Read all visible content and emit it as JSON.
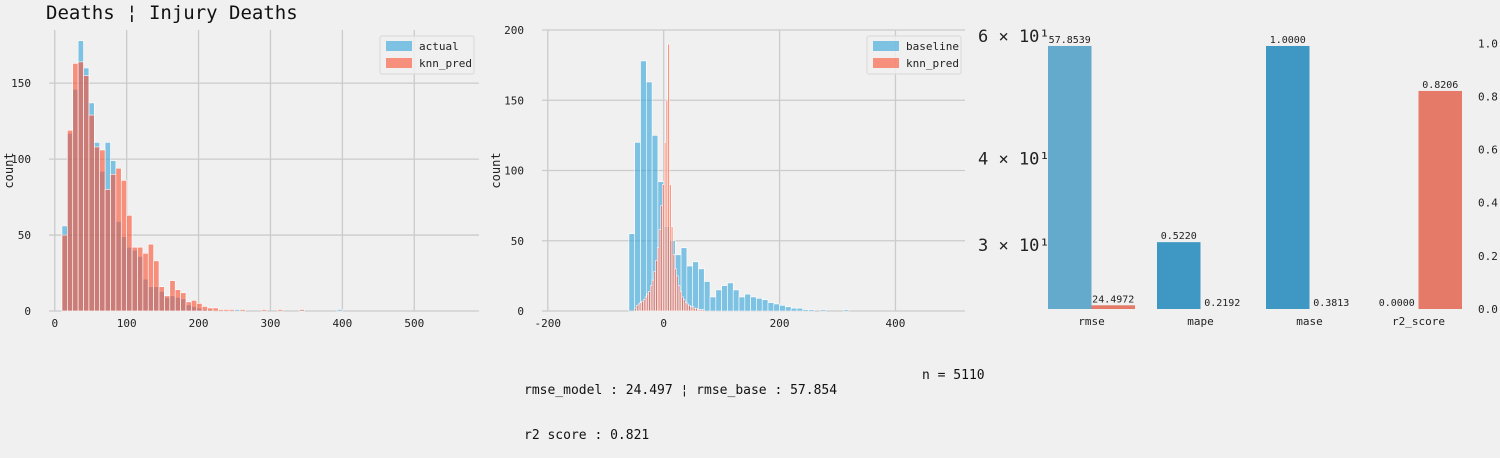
{
  "title": "Deaths ¦ Injury Deaths",
  "footer": {
    "line1": "rmse_model : 24.497 ¦ rmse_base : 57.854",
    "line2": "r2 score : 0.821",
    "n": "n = 5110"
  },
  "colors": {
    "blue": "#30a2da",
    "red": "#fc4f30",
    "blue_dark": "#008fd5",
    "red_dark": "#e5ae38",
    "bg": "#f0f0f0",
    "grid": "#cbcbcb"
  },
  "chart_data": [
    {
      "type": "histogram",
      "ylabel": "count",
      "xlim": [
        -8,
        590
      ],
      "ylim": [
        0,
        185
      ],
      "xticks": [
        0,
        100,
        200,
        300,
        400,
        500
      ],
      "yticks": [
        0,
        50,
        100,
        150
      ],
      "legend": "top-right",
      "bin_width": 7.5,
      "bin_start": 10,
      "series": [
        {
          "name": "actual",
          "color": "#30a2da",
          "values": [
            56,
            117,
            146,
            178,
            160,
            137,
            111,
            92,
            111,
            99,
            59,
            49,
            42,
            40,
            36,
            21,
            16,
            16,
            13,
            9,
            10,
            9,
            8,
            4,
            3,
            2,
            1,
            1,
            0,
            0,
            0,
            0,
            1,
            0,
            0,
            0,
            0,
            0,
            0,
            0,
            0,
            0,
            0,
            0,
            1,
            0,
            0,
            0,
            0,
            0,
            0,
            1
          ]
        },
        {
          "name": "knn_pred",
          "color": "#fc4f30",
          "values": [
            50,
            119,
            163,
            164,
            155,
            129,
            108,
            106,
            80,
            90,
            94,
            86,
            63,
            42,
            42,
            38,
            44,
            33,
            16,
            10,
            20,
            14,
            12,
            6,
            7,
            5,
            3,
            2,
            2,
            1,
            1,
            1,
            0,
            1,
            0,
            0,
            0,
            1,
            0,
            0,
            1,
            0,
            0,
            0,
            1,
            0,
            0,
            0,
            0,
            0,
            0
          ]
        }
      ]
    },
    {
      "type": "histogram",
      "ylabel": "count",
      "xlim": [
        -210,
        520
      ],
      "ylim": [
        0,
        200
      ],
      "xticks": [
        -200,
        0,
        200,
        400
      ],
      "yticks": [
        0,
        50,
        100,
        150,
        200
      ],
      "legend": "top-right",
      "series": [
        {
          "name": "baseline",
          "color": "#30a2da",
          "bin_start": -70,
          "bin_width": 10,
          "values": [
            0,
            55,
            120,
            178,
            163,
            125,
            92,
            60,
            50,
            40,
            45,
            32,
            35,
            30,
            21,
            10,
            15,
            18,
            20,
            15,
            10,
            12,
            10,
            9,
            8,
            6,
            5,
            4,
            3,
            2,
            2,
            1,
            1,
            0,
            1,
            0,
            0,
            0,
            1,
            0,
            0,
            0
          ]
        },
        {
          "name": "knn_pred",
          "color": "#fc4f30",
          "bin_start": -50,
          "bin_width": 3,
          "values": [
            2,
            4,
            5,
            6,
            7,
            8,
            10,
            12,
            14,
            18,
            22,
            28,
            36,
            45,
            58,
            75,
            90,
            120,
            150,
            190,
            90,
            60,
            40,
            30,
            25,
            18,
            14,
            10,
            8,
            6,
            5,
            4,
            3,
            3,
            2,
            2,
            1,
            1,
            1,
            1
          ]
        }
      ]
    },
    {
      "type": "bar",
      "categories": [
        "rmse",
        "mape",
        "mase",
        "r2_score"
      ],
      "left_axis": {
        "scale": "log",
        "ticks": [
          "6 × 10¹",
          "4 × 10¹",
          "3 × 10¹"
        ],
        "tick_values": [
          60,
          40,
          30
        ],
        "range": [
          24.2,
          61
        ]
      },
      "right_axis": {
        "scale": "linear",
        "ticks": [
          "0.0",
          "0.2",
          "0.4",
          "0.6",
          "0.8",
          "1.0"
        ],
        "range": [
          0,
          1.05
        ]
      },
      "series": [
        {
          "name": "baseline",
          "values": [
            57.8539,
            0.522,
            1.0,
            0.0
          ],
          "labels": [
            "57.8539",
            "0.5220",
            "1.0000",
            "0.0000"
          ]
        },
        {
          "name": "knn_pred",
          "values": [
            24.4972,
            0.2192,
            0.3813,
            0.8206
          ],
          "labels": [
            "24.4972",
            "0.2192",
            "0.3813",
            "0.8206"
          ]
        }
      ]
    }
  ]
}
